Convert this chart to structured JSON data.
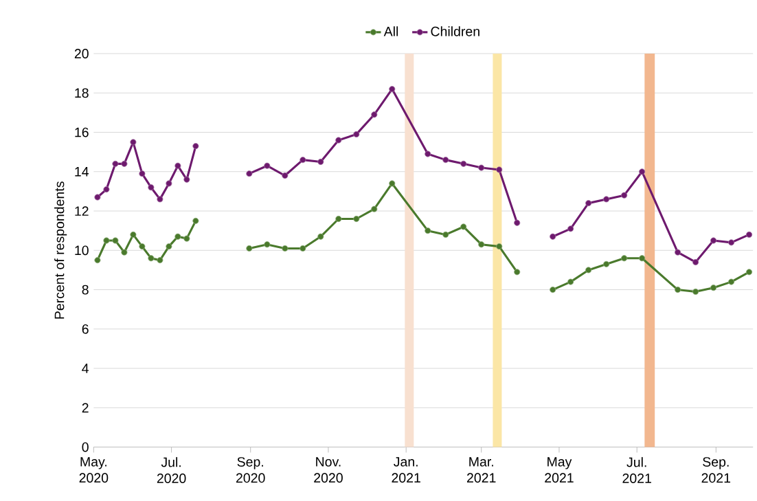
{
  "chart_data": {
    "type": "line",
    "ylabel": "Percent of respondents",
    "x": [
      "2020-05-04",
      "2020-05-11",
      "2020-05-18",
      "2020-05-25",
      "2020-06-01",
      "2020-06-08",
      "2020-06-15",
      "2020-06-22",
      "2020-06-29",
      "2020-07-06",
      "2020-07-13",
      "2020-07-20",
      "2020-08-10",
      "2020-08-31",
      "2020-09-14",
      "2020-09-28",
      "2020-10-12",
      "2020-10-26",
      "2020-11-09",
      "2020-11-23",
      "2020-12-07",
      "2020-12-21",
      "2021-01-18",
      "2021-02-01",
      "2021-02-15",
      "2021-03-01",
      "2021-03-15",
      "2021-03-29",
      "2021-04-12",
      "2021-04-26",
      "2021-05-10",
      "2021-05-24",
      "2021-06-07",
      "2021-06-21",
      "2021-07-05",
      "2021-08-02",
      "2021-08-16",
      "2021-08-30",
      "2021-09-13",
      "2021-09-27"
    ],
    "series": [
      {
        "name": "All",
        "color": "#4a7a2c",
        "values": [
          9.5,
          10.5,
          10.5,
          9.9,
          10.8,
          10.2,
          9.6,
          9.5,
          10.2,
          10.7,
          10.6,
          11.5,
          null,
          10.1,
          10.3,
          10.1,
          10.1,
          10.7,
          11.6,
          11.6,
          12.1,
          13.4,
          11.0,
          10.8,
          11.2,
          10.3,
          10.2,
          8.9,
          null,
          8.0,
          8.4,
          9.0,
          9.3,
          9.6,
          9.6,
          8.0,
          7.9,
          8.1,
          8.4,
          8.9
        ]
      },
      {
        "name": "Children",
        "color": "#6e1a6e",
        "values": [
          12.7,
          13.1,
          14.4,
          14.4,
          15.5,
          13.9,
          13.2,
          12.6,
          13.4,
          14.3,
          13.6,
          15.3,
          null,
          13.9,
          14.3,
          13.8,
          14.6,
          14.5,
          15.6,
          15.9,
          16.9,
          18.2,
          14.9,
          14.6,
          14.4,
          14.2,
          14.1,
          11.4,
          null,
          10.7,
          11.1,
          12.4,
          12.6,
          12.8,
          14.0,
          9.9,
          9.4,
          10.5,
          10.4,
          10.8
        ]
      }
    ],
    "xlim": [
      "2020-05-01",
      "2021-09-30"
    ],
    "xticks": [
      {
        "value": "2020-05-01",
        "label": "May. 2020"
      },
      {
        "value": "2020-07-01",
        "label": "Jul. 2020"
      },
      {
        "value": "2020-09-01",
        "label": "Sep. 2020"
      },
      {
        "value": "2020-11-01",
        "label": "Nov. 2020"
      },
      {
        "value": "2021-01-01",
        "label": "Jan. 2021"
      },
      {
        "value": "2021-03-01",
        "label": "Mar. 2021"
      },
      {
        "value": "2021-05-01",
        "label": "May 2021"
      },
      {
        "value": "2021-07-01",
        "label": "Jul. 2021"
      },
      {
        "value": "2021-09-01",
        "label": "Sep. 2021"
      }
    ],
    "ylim": [
      0,
      20
    ],
    "yticks": [
      0,
      2,
      4,
      6,
      8,
      10,
      12,
      14,
      16,
      18,
      20
    ],
    "bands": [
      {
        "axis": "x",
        "from": "2020-12-31",
        "to": "2021-01-07",
        "color": "#f8e0d0"
      },
      {
        "axis": "x",
        "from": "2021-03-10",
        "to": "2021-03-17",
        "color": "#fbe6a6"
      },
      {
        "axis": "x",
        "from": "2021-07-07",
        "to": "2021-07-15",
        "color": "#f2b78f"
      }
    ],
    "grid": "y",
    "legend": "top",
    "marker": "circle",
    "line_style": "solid"
  }
}
